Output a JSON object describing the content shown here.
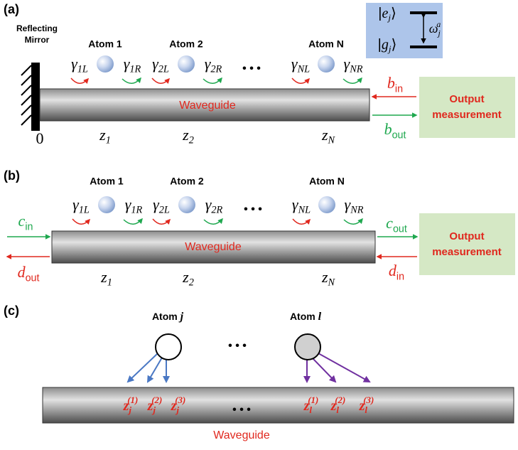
{
  "panel_a": {
    "label": "(a)",
    "mirror": [
      "Reflecting",
      "Mirror"
    ],
    "atoms": [
      {
        "name": "Atom 1",
        "left": {
          "symbol": "γ",
          "sub": "1L"
        },
        "right": {
          "symbol": "γ",
          "sub": "1R"
        }
      },
      {
        "name": "Atom 2",
        "left": {
          "symbol": "γ",
          "sub": "2L"
        },
        "right": {
          "symbol": "γ",
          "sub": "2R"
        }
      },
      {
        "name": "Atom N",
        "left": {
          "symbol": "γ",
          "sub": "NL"
        },
        "right": {
          "symbol": "γ",
          "sub": "NR"
        }
      }
    ],
    "ellipsis": "• • •",
    "waveguide": "Waveguide",
    "origin": "0",
    "positions": [
      {
        "symbol": "z",
        "sub": "1"
      },
      {
        "symbol": "z",
        "sub": "2"
      },
      {
        "symbol": "z",
        "sub": "N"
      }
    ],
    "input": {
      "symbol": "b",
      "sub": "in"
    },
    "output": {
      "symbol": "b",
      "sub": "out"
    },
    "measurement": [
      "Output",
      "measurement"
    ],
    "levels": {
      "excited": {
        "pre": "|",
        "symbol": "e",
        "sub": "j",
        "post": "⟩"
      },
      "ground": {
        "pre": "|",
        "symbol": "g",
        "sub": "j",
        "post": "⟩"
      },
      "frequency": {
        "symbol": "ω",
        "sub": "j",
        "sup": "a"
      }
    }
  },
  "panel_b": {
    "label": "(b)",
    "atoms": [
      {
        "name": "Atom 1",
        "left": {
          "symbol": "γ",
          "sub": "1L"
        },
        "right": {
          "symbol": "γ",
          "sub": "1R"
        }
      },
      {
        "name": "Atom 2",
        "left": {
          "symbol": "γ",
          "sub": "2L"
        },
        "right": {
          "symbol": "γ",
          "sub": "2R"
        }
      },
      {
        "name": "Atom N",
        "left": {
          "symbol": "γ",
          "sub": "NL"
        },
        "right": {
          "symbol": "γ",
          "sub": "NR"
        }
      }
    ],
    "ellipsis": "• • •",
    "waveguide": "Waveguide",
    "positions": [
      {
        "symbol": "z",
        "sub": "1"
      },
      {
        "symbol": "z",
        "sub": "2"
      },
      {
        "symbol": "z",
        "sub": "N"
      }
    ],
    "left_input": {
      "symbol": "c",
      "sub": "in"
    },
    "left_output": {
      "symbol": "d",
      "sub": "out"
    },
    "right_output": {
      "symbol": "c",
      "sub": "out"
    },
    "right_input": {
      "symbol": "d",
      "sub": "in"
    },
    "measurement": [
      "Output",
      "measurement"
    ]
  },
  "panel_c": {
    "label": "(c)",
    "atoms": [
      {
        "name": "Atom",
        "index": "j"
      },
      {
        "name": "Atom",
        "index": "l"
      }
    ],
    "ellipsis": "• • •",
    "waveguide_ellipsis": "• • •",
    "waveguide": "Waveguide",
    "points": [
      [
        {
          "symbol": "z",
          "sub": "j",
          "sup": "(1)"
        },
        {
          "symbol": "z",
          "sub": "j",
          "sup": "(2)"
        },
        {
          "symbol": "z",
          "sub": "j",
          "sup": "(3)"
        }
      ],
      [
        {
          "symbol": "z",
          "sub": "l",
          "sup": "(1)"
        },
        {
          "symbol": "z",
          "sub": "l",
          "sup": "(2)"
        },
        {
          "symbol": "z",
          "sub": "l",
          "sup": "(3)"
        }
      ]
    ]
  }
}
